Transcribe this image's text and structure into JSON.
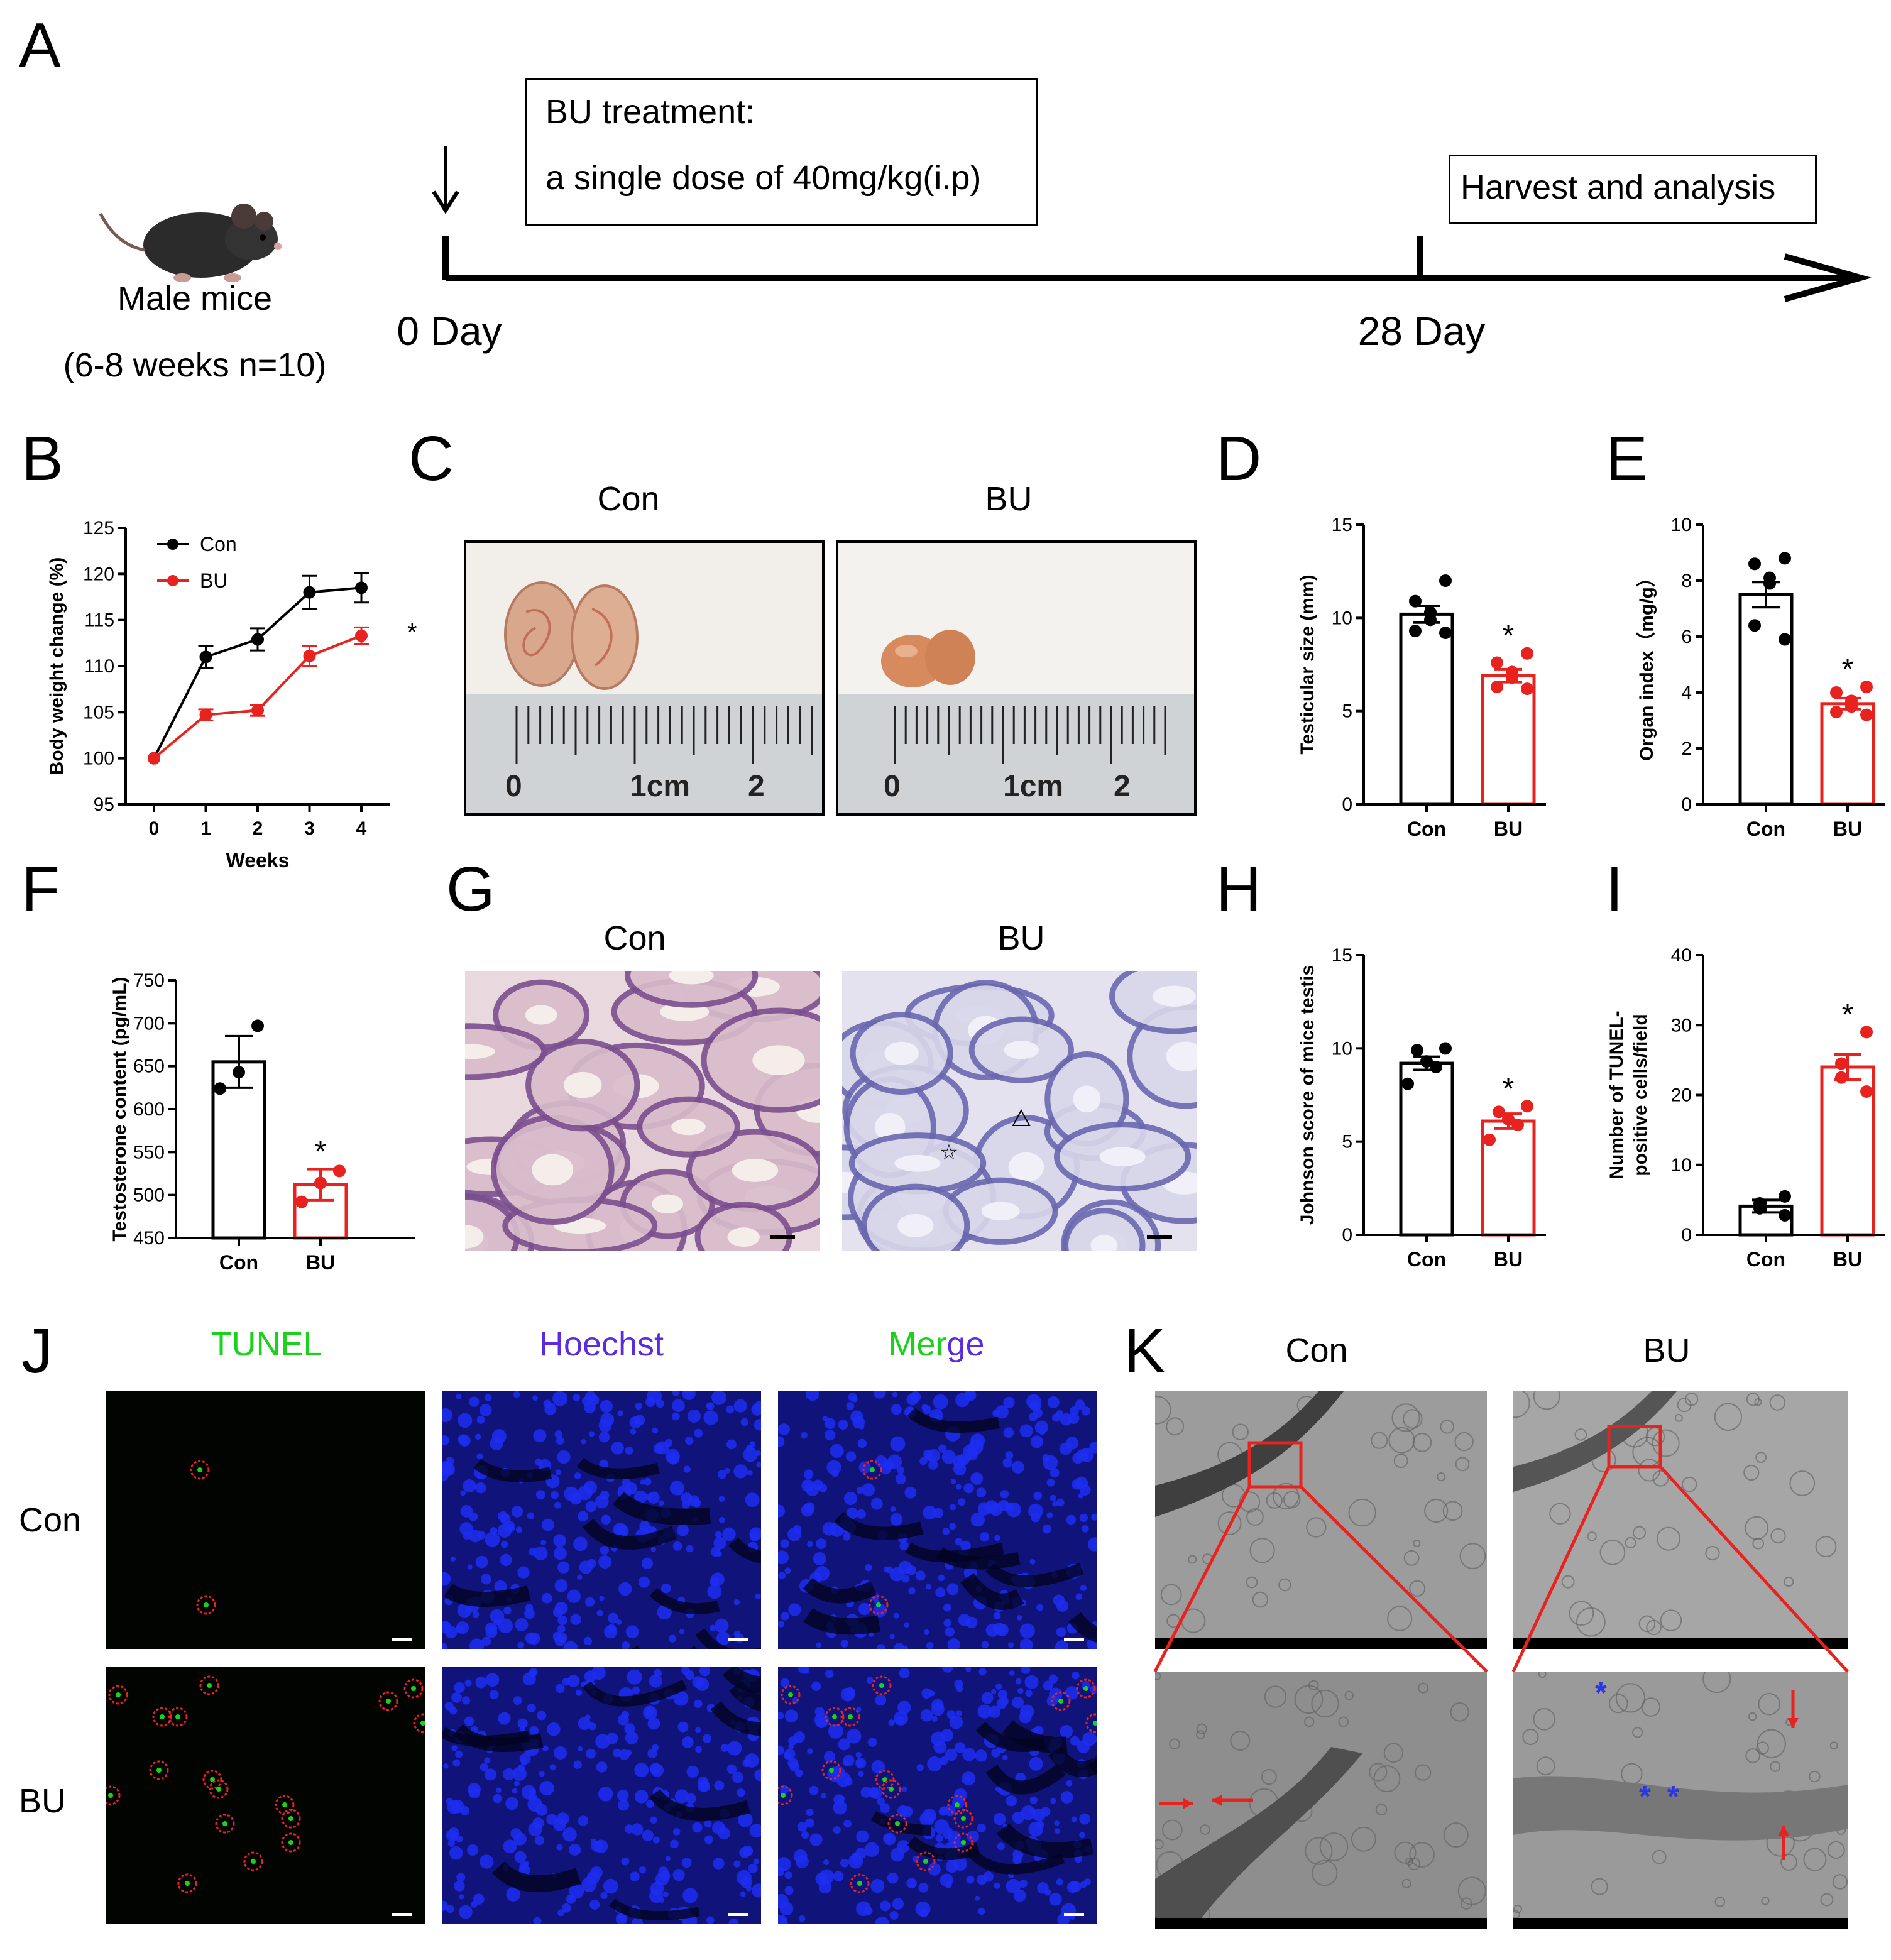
{
  "panels": {
    "A": "A",
    "B": "B",
    "C": "C",
    "D": "D",
    "E": "E",
    "F": "F",
    "G": "G",
    "H": "H",
    "I": "I",
    "J": "J",
    "K": "K"
  },
  "panel_a": {
    "treatment_title": "BU treatment:",
    "treatment_dose": "a single dose of 40mg/kg(i.p)",
    "harvest": "Harvest and analysis",
    "subject": "Male mice",
    "subject_detail": "(6-8 weeks n=10)",
    "day_start": "0 Day",
    "day_end": "28 Day"
  },
  "groups": {
    "con": "Con",
    "bu": "BU"
  },
  "panel_c": {
    "ruler_0": "0",
    "ruler_1": "1cm",
    "ruler_2": "2"
  },
  "panel_j": {
    "tunel": "TUNEL",
    "hoechst": "Hoechst",
    "merge_a": "Mer",
    "merge_b": "ge"
  },
  "colors": {
    "con": "#000000",
    "bu": "#e8231f",
    "tunel": "#19d219",
    "hoechst": "#5a2be0",
    "nucleus": "#1d2ef2",
    "circle": "#e8231f",
    "star": "#2a36e6"
  },
  "chart_data": [
    {
      "panel": "B",
      "type": "line",
      "x": [
        0,
        1,
        2,
        3,
        4
      ],
      "xlabel": "Weeks",
      "ylabel": "Body weight change (%)",
      "ylim": [
        95,
        125
      ],
      "yticks": [
        95,
        100,
        105,
        110,
        115,
        120,
        125
      ],
      "series": [
        {
          "name": "Con",
          "values": [
            100,
            111,
            112.9,
            118,
            118.5
          ],
          "err": [
            0,
            1.2,
            1.2,
            1.8,
            1.6
          ],
          "color": "#000000"
        },
        {
          "name": "BU",
          "values": [
            100,
            104.7,
            105.2,
            111.1,
            113.3
          ],
          "err": [
            0,
            0.6,
            0.6,
            1.1,
            0.9
          ],
          "color": "#e8231f"
        }
      ],
      "annotation": "*",
      "legend": "top-left"
    },
    {
      "panel": "D",
      "type": "bar",
      "categories": [
        "Con",
        "BU"
      ],
      "values": [
        10.2,
        6.9
      ],
      "err": [
        0.45,
        0.35
      ],
      "points": [
        [
          12,
          10.9,
          10.3,
          9.9,
          9.3,
          9.2
        ],
        [
          8.1,
          7.6,
          7.1,
          6.8,
          6.3,
          6.2
        ]
      ],
      "ylabel": "Testicular size (mm)",
      "ylim": [
        0,
        15
      ],
      "yticks": [
        0,
        5,
        10,
        15
      ],
      "annotation": "*"
    },
    {
      "panel": "E",
      "type": "bar",
      "categories": [
        "Con",
        "BU"
      ],
      "values": [
        7.5,
        3.6
      ],
      "err": [
        0.45,
        0.2
      ],
      "points": [
        [
          8.8,
          8.6,
          8.1,
          7.9,
          6.4,
          5.9
        ],
        [
          4.2,
          4.0,
          3.7,
          3.5,
          3.3,
          3.2
        ]
      ],
      "ylabel": "Organ index（mg/g）",
      "ylim": [
        0,
        10
      ],
      "yticks": [
        0,
        2,
        4,
        6,
        8,
        10
      ],
      "annotation": "*"
    },
    {
      "panel": "F",
      "type": "bar",
      "categories": [
        "Con",
        "BU"
      ],
      "values": [
        655,
        512
      ],
      "err": [
        30,
        18
      ],
      "points": [
        [
          697,
          643,
          624
        ],
        [
          528,
          514,
          492
        ]
      ],
      "ylabel": "Testosterone content (pg/mL)",
      "ylim": [
        450,
        750
      ],
      "yticks": [
        450,
        500,
        550,
        600,
        650,
        700,
        750
      ],
      "annotation": "*"
    },
    {
      "panel": "H",
      "type": "bar",
      "categories": [
        "Con",
        "BU"
      ],
      "values": [
        9.2,
        6.1
      ],
      "err": [
        0.35,
        0.4
      ],
      "points": [
        [
          10,
          9.9,
          9.3,
          9.0,
          8.1
        ],
        [
          6.9,
          6.6,
          6.2,
          5.9,
          5.1
        ]
      ],
      "ylabel": "Johnson score of mice testis",
      "ylim": [
        0,
        15
      ],
      "yticks": [
        0,
        5,
        10,
        15
      ],
      "annotation": "*"
    },
    {
      "panel": "I",
      "type": "bar",
      "categories": [
        "Con",
        "BU"
      ],
      "values": [
        4.1,
        24
      ],
      "err": [
        0.9,
        1.8
      ],
      "points": [
        [
          5.5,
          4.5,
          3.8,
          2.8
        ],
        [
          29,
          24.5,
          22.5,
          20.5
        ]
      ],
      "ylabel": "Number of TUNEL-positive cells/field",
      "ylim": [
        0,
        40
      ],
      "yticks": [
        0,
        10,
        20,
        30,
        40
      ],
      "annotation": "*"
    }
  ]
}
